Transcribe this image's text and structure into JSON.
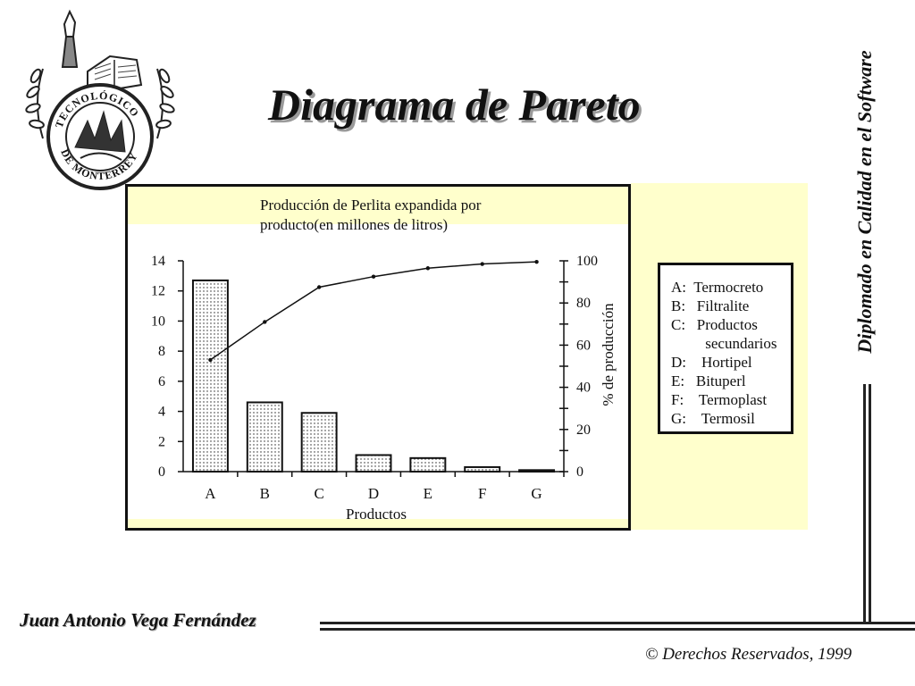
{
  "slide": {
    "title": "Diagrama de Pareto",
    "side_caption": "Diplomado en Calidad en el Software",
    "author": "Juan Antonio Vega Fernández",
    "copyright": "Derechos Reservados, 1999",
    "copyright_symbol": "©",
    "logo": {
      "arc_top": "TECNOLÓGICO",
      "arc_bottom": "DE MONTERREY"
    }
  },
  "legend": {
    "items": [
      "A:  Termocreto",
      "B:   Filtralite",
      "C:   Productos",
      "         secundarios",
      "D:    Hortipel",
      "E:   Bituperl",
      "F:    Termoplast",
      "G:    Termosil"
    ]
  },
  "colors": {
    "chart_background": "#ffffcc",
    "bars_fill": "#ffffff",
    "ink": "#111111"
  },
  "chart_data": {
    "type": "bar",
    "title": "Producción de Perlita expandida por producto(en millones de litros)",
    "title_lines": [
      "Producción de Perlita expandida por",
      "producto(en millones de litros)"
    ],
    "xlabel": "Productos",
    "ylabel": "",
    "y2label": "% de producción",
    "categories": [
      "A",
      "B",
      "C",
      "D",
      "E",
      "F",
      "G"
    ],
    "values": [
      12.7,
      4.6,
      3.9,
      1.1,
      0.9,
      0.3,
      0.1
    ],
    "ylim": [
      0,
      14
    ],
    "yticks": [
      "0",
      "2",
      "4",
      "6",
      "8",
      "10",
      "12",
      "14"
    ],
    "y2lim": [
      0,
      100
    ],
    "y2ticks": [
      "0",
      "20",
      "40",
      "60",
      "80",
      "100"
    ],
    "cumulative_percent": [
      53,
      71,
      87.5,
      92.5,
      96.5,
      98.5,
      99.5
    ],
    "grid": false,
    "bar_pattern": "dotted"
  }
}
